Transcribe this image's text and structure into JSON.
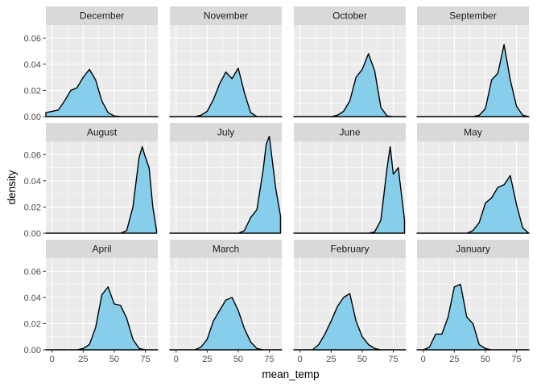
{
  "chart_data": {
    "type": "area",
    "facet_by": "month",
    "xlabel": "mean_temp",
    "ylabel": "density",
    "xlim": [
      -5,
      85
    ],
    "ylim": [
      0,
      0.07
    ],
    "x_ticks": [
      0,
      25,
      50,
      75
    ],
    "y_ticks": [
      0.0,
      0.02,
      0.04,
      0.06
    ],
    "y_tick_labels": [
      "0.00",
      "0.02",
      "0.04",
      "0.06"
    ],
    "x_tick_labels": [
      "0",
      "25",
      "50",
      "75"
    ],
    "fill_color": "#87ceeb",
    "line_color": "#000000",
    "grid": true,
    "panels": [
      {
        "name": "December",
        "x": [
          -5,
          0,
          5,
          10,
          15,
          20,
          25,
          30,
          35,
          40,
          45,
          50,
          55,
          60,
          65,
          70,
          75,
          80,
          85
        ],
        "y": [
          0.003,
          0.004,
          0.005,
          0.012,
          0.02,
          0.022,
          0.03,
          0.036,
          0.028,
          0.012,
          0.003,
          0.0005,
          0,
          0,
          0,
          0,
          0,
          0,
          0
        ]
      },
      {
        "name": "November",
        "x": [
          -5,
          0,
          5,
          10,
          15,
          20,
          25,
          30,
          35,
          40,
          45,
          50,
          55,
          60,
          65,
          70,
          75,
          80,
          85
        ],
        "y": [
          0,
          0,
          0,
          0,
          0,
          0.001,
          0.004,
          0.013,
          0.025,
          0.034,
          0.029,
          0.037,
          0.018,
          0.003,
          0,
          0,
          0,
          0,
          0
        ]
      },
      {
        "name": "October",
        "x": [
          -5,
          0,
          5,
          10,
          15,
          20,
          25,
          30,
          35,
          40,
          45,
          50,
          55,
          60,
          65,
          70,
          75,
          80,
          85
        ],
        "y": [
          0,
          0,
          0,
          0,
          0,
          0,
          0,
          0.001,
          0.004,
          0.012,
          0.03,
          0.036,
          0.048,
          0.035,
          0.007,
          0.0005,
          0,
          0,
          0
        ]
      },
      {
        "name": "September",
        "x": [
          -5,
          0,
          5,
          10,
          15,
          20,
          25,
          30,
          35,
          40,
          45,
          50,
          55,
          60,
          65,
          70,
          75,
          80,
          85
        ],
        "y": [
          0,
          0,
          0,
          0,
          0,
          0,
          0,
          0,
          0,
          0,
          0.001,
          0.006,
          0.028,
          0.033,
          0.055,
          0.028,
          0.008,
          0.001,
          0
        ]
      },
      {
        "name": "August",
        "x": [
          -5,
          0,
          5,
          10,
          15,
          20,
          25,
          30,
          35,
          40,
          45,
          50,
          55,
          60,
          65,
          70,
          72.5,
          75,
          78,
          81,
          84
        ],
        "y": [
          0,
          0,
          0,
          0,
          0,
          0,
          0,
          0,
          0,
          0,
          0,
          0,
          0,
          0.002,
          0.02,
          0.058,
          0.066,
          0.058,
          0.05,
          0.02,
          0.002
        ]
      },
      {
        "name": "July",
        "x": [
          -5,
          0,
          5,
          10,
          15,
          20,
          25,
          30,
          35,
          40,
          45,
          50,
          55,
          60,
          65,
          70,
          72.5,
          75,
          80,
          84
        ],
        "y": [
          0,
          0,
          0,
          0,
          0,
          0,
          0,
          0,
          0,
          0,
          0,
          0,
          0.002,
          0.012,
          0.018,
          0.048,
          0.068,
          0.074,
          0.035,
          0.013
        ]
      },
      {
        "name": "June",
        "x": [
          -5,
          0,
          5,
          10,
          15,
          20,
          25,
          30,
          35,
          40,
          45,
          50,
          55,
          60,
          65,
          70,
          72.5,
          75,
          79,
          84
        ],
        "y": [
          0,
          0,
          0,
          0,
          0,
          0,
          0,
          0,
          0,
          0,
          0,
          0,
          0,
          0.001,
          0.01,
          0.05,
          0.066,
          0.045,
          0.05,
          0.01
        ]
      },
      {
        "name": "May",
        "x": [
          -5,
          0,
          5,
          10,
          15,
          20,
          25,
          30,
          35,
          40,
          45,
          50,
          55,
          60,
          65,
          70,
          75,
          80,
          85
        ],
        "y": [
          0,
          0,
          0,
          0,
          0,
          0,
          0,
          0,
          0,
          0.002,
          0.008,
          0.023,
          0.027,
          0.035,
          0.037,
          0.044,
          0.022,
          0.004,
          0
        ]
      },
      {
        "name": "April",
        "x": [
          -5,
          0,
          5,
          10,
          15,
          20,
          25,
          30,
          35,
          40,
          45,
          50,
          55,
          60,
          65,
          70,
          75,
          80,
          85
        ],
        "y": [
          0,
          0,
          0,
          0,
          0,
          0,
          0.001,
          0.004,
          0.017,
          0.042,
          0.048,
          0.035,
          0.034,
          0.024,
          0.008,
          0.001,
          0,
          0,
          0
        ]
      },
      {
        "name": "March",
        "x": [
          -5,
          0,
          5,
          10,
          15,
          20,
          25,
          30,
          35,
          40,
          45,
          50,
          55,
          60,
          65,
          70,
          75,
          80,
          85
        ],
        "y": [
          0,
          0,
          0,
          0,
          0,
          0.002,
          0.008,
          0.022,
          0.03,
          0.038,
          0.04,
          0.03,
          0.016,
          0.006,
          0.001,
          0,
          0,
          0,
          0
        ]
      },
      {
        "name": "February",
        "x": [
          -5,
          0,
          5,
          10,
          15,
          20,
          25,
          30,
          35,
          40,
          45,
          50,
          55,
          60,
          65,
          70,
          75,
          80,
          85
        ],
        "y": [
          0,
          0,
          0,
          0,
          0.004,
          0.012,
          0.022,
          0.033,
          0.04,
          0.043,
          0.022,
          0.01,
          0.004,
          0.001,
          0,
          0,
          0,
          0,
          0
        ]
      },
      {
        "name": "January",
        "x": [
          -5,
          0,
          5,
          10,
          15,
          20,
          25,
          30,
          35,
          40,
          45,
          50,
          55,
          60,
          65,
          70,
          75,
          80,
          85
        ],
        "y": [
          0,
          0,
          0.002,
          0.012,
          0.012,
          0.025,
          0.048,
          0.05,
          0.025,
          0.02,
          0.004,
          0.001,
          0,
          0,
          0,
          0,
          0,
          0,
          0
        ]
      }
    ]
  }
}
